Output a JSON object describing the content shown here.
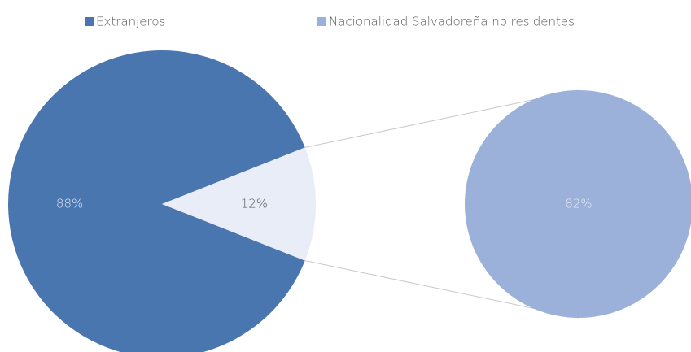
{
  "chart_data": {
    "type": "pie-of-pie",
    "legend": "top",
    "main": {
      "categories": [
        "Extranjeros",
        null
      ],
      "values": [
        88,
        12
      ],
      "value_labels": [
        "88%",
        "12%"
      ],
      "colors": [
        "#4a76b0",
        "#e9edf8"
      ],
      "label_colors": [
        "#dfe6f2",
        "#555555"
      ]
    },
    "secondary": {
      "categories": [
        "Nacionalidad Salvadoreña no residentes"
      ],
      "values": [
        82
      ],
      "value_labels": [
        "82%"
      ],
      "colors": [
        "#9bb1d9"
      ],
      "label_colors": [
        "#e6ecf6"
      ]
    }
  }
}
